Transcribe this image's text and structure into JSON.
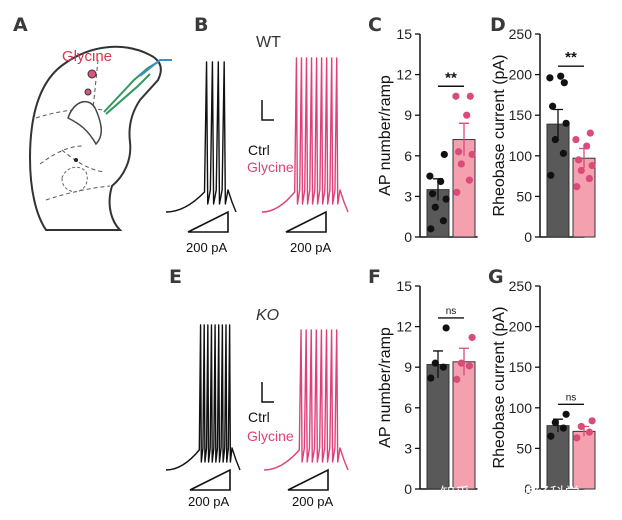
{
  "panels": {
    "A": "A",
    "B": "B",
    "C": "C",
    "D": "D",
    "E": "E",
    "F": "F",
    "G": "G"
  },
  "slice_label": "Glycine",
  "traces": {
    "top_title": "WT",
    "bottom_title": "KO",
    "legend_ctrl": "Ctrl",
    "legend_glycine": "Glycine",
    "ramp_label": "200 pA",
    "colors": {
      "ctrl": "#111111",
      "glycine": "#e0407a"
    }
  },
  "watermark": "知乎 @逻辑神经科学",
  "chart_data": [
    {
      "panel": "C",
      "type": "bar",
      "categories": [
        "Ctrl",
        "Glycine"
      ],
      "values": [
        3.5,
        7.2
      ],
      "errors": [
        0.8,
        1.2
      ],
      "points": [
        [
          0.6,
          1.2,
          2.2,
          2.8,
          3.2,
          4.1,
          4.5,
          6.1
        ],
        [
          3.3,
          4.2,
          5.4,
          6.1,
          6.3,
          9.0,
          10.4,
          10.4
        ]
      ],
      "ylabel": "AP number/ramp",
      "ylim": [
        0,
        15
      ],
      "yticks": [
        "0",
        "3",
        "6",
        "9",
        "12",
        "15"
      ],
      "significance": "**",
      "colors": [
        "#595959",
        "#f4a0ae"
      ]
    },
    {
      "panel": "D",
      "type": "bar",
      "categories": [
        "Ctrl",
        "Glycine"
      ],
      "values": [
        139,
        97
      ],
      "errors": [
        18,
        12
      ],
      "points": [
        [
          76,
          103,
          120,
          140,
          161,
          198,
          196,
          190
        ],
        [
          62,
          72,
          82,
          88,
          95,
          112,
          120,
          128
        ]
      ],
      "ylabel": "Rheobase current (pA)",
      "ylim": [
        0,
        250
      ],
      "yticks": [
        "0",
        "50",
        "100",
        "150",
        "200",
        "250"
      ],
      "significance": "**",
      "colors": [
        "#595959",
        "#f4a0ae"
      ]
    },
    {
      "panel": "F",
      "type": "bar",
      "categories": [
        "Ctrl",
        "Glycine"
      ],
      "values": [
        9.2,
        9.4
      ],
      "errors": [
        1.0,
        1.0
      ],
      "points": [
        [
          8.2,
          9.0,
          9.3,
          11.9
        ],
        [
          8.1,
          9.1,
          9.3,
          11.2
        ]
      ],
      "ylabel": "AP number/ramp",
      "ylim": [
        0,
        15
      ],
      "yticks": [
        "0",
        "3",
        "6",
        "9",
        "12",
        "15"
      ],
      "significance": "ns",
      "colors": [
        "#595959",
        "#f4a0ae"
      ]
    },
    {
      "panel": "G",
      "type": "bar",
      "categories": [
        "Ctrl",
        "Glycine"
      ],
      "values": [
        78,
        71
      ],
      "errors": [
        8,
        6
      ],
      "points": [
        [
          65,
          75,
          82,
          92
        ],
        [
          63,
          70,
          77,
          84
        ]
      ],
      "ylabel": "Rheobase current (pA)",
      "ylim": [
        0,
        250
      ],
      "yticks": [
        "0",
        "50",
        "100",
        "150",
        "200",
        "250"
      ],
      "significance": "ns",
      "colors": [
        "#595959",
        "#f4a0ae"
      ]
    }
  ]
}
